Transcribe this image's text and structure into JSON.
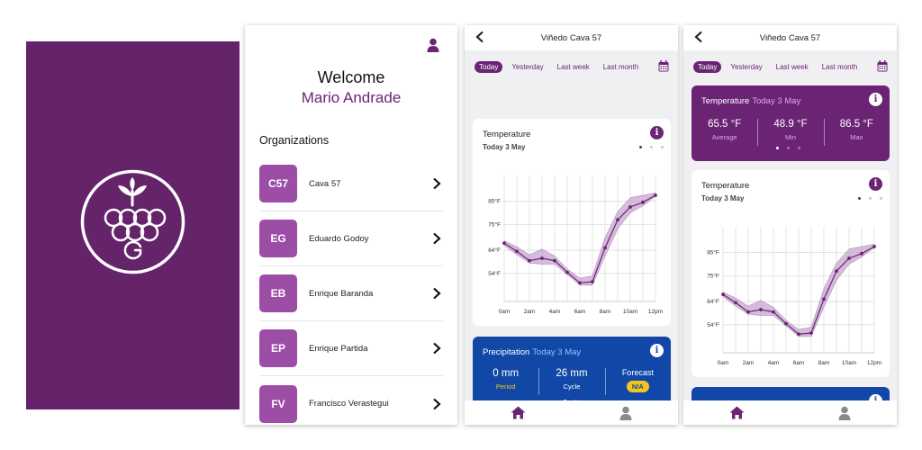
{
  "colors": {
    "brand": "#65236a",
    "brand_light": "#9c4ea7",
    "precip_blue": "#1148a8",
    "highlight_blue": "#8fc4ff",
    "highlight_lavender": "#d8a8e8",
    "na_yellow": "#f5c518"
  },
  "welcome": {
    "greeting": "Welcome",
    "user_name": "Mario Andrade",
    "organizations_title": "Organizations",
    "organizations": [
      {
        "initials": "C57",
        "name": "Cava 57"
      },
      {
        "initials": "EG",
        "name": "Eduardo Godoy"
      },
      {
        "initials": "EB",
        "name": "Enrique Baranda"
      },
      {
        "initials": "EP",
        "name": "Enrique Partida"
      },
      {
        "initials": "FV",
        "name": "Francisco Verastegui"
      }
    ]
  },
  "detail": {
    "title": "Viñedo Cava 57",
    "tabs": [
      "Today",
      "Yesterday",
      "Last week",
      "Last month"
    ],
    "active_tab": "Today",
    "temperature_card": {
      "title": "Temperature",
      "subtitle": "Today 3 May"
    },
    "temperature_summary": {
      "title": "Temperature",
      "highlight": "Today 3 May",
      "stats": [
        {
          "value": "65.5 °F",
          "label": "Average"
        },
        {
          "value": "48.9 °F",
          "label": "Min"
        },
        {
          "value": "86.5 °F",
          "label": "Max"
        }
      ]
    },
    "precipitation_card": {
      "title": "Precipitation",
      "highlight": "Today 3 May",
      "stats": [
        {
          "value": "0 mm",
          "label": "Period"
        },
        {
          "value": "26 mm",
          "label": "Cycle"
        },
        {
          "value": "Forecast",
          "badge": "N/A"
        }
      ]
    }
  },
  "chart_data": [
    {
      "type": "line",
      "title": "Temperature",
      "subtitle": "Today 3 May",
      "x_tick_labels": [
        "0am",
        "2am",
        "4am",
        "6am",
        "8am",
        "10am",
        "12pm"
      ],
      "y_tick_labels": [
        "85°F",
        "75°F",
        "64°F",
        "54°F"
      ],
      "y_ticks": [
        85,
        75,
        64,
        54
      ],
      "x": [
        0,
        1,
        2,
        3,
        4,
        5,
        6,
        7,
        8,
        9,
        10,
        11,
        12
      ],
      "values": [
        67,
        63.5,
        59.5,
        60.5,
        59.5,
        54.5,
        50,
        50.5,
        65,
        77,
        82.5,
        84.5,
        87.5
      ],
      "range_low": [
        66,
        62,
        58.5,
        58,
        58,
        53.5,
        49,
        49,
        61.5,
        73,
        80,
        83,
        87
      ],
      "range_high": [
        68,
        65.5,
        62,
        64.5,
        61.5,
        56,
        52,
        53,
        69.5,
        80.5,
        86.5,
        87.5,
        88.5
      ],
      "ylim": [
        42,
        96
      ],
      "grid": true,
      "color": "#6b2474"
    }
  ]
}
